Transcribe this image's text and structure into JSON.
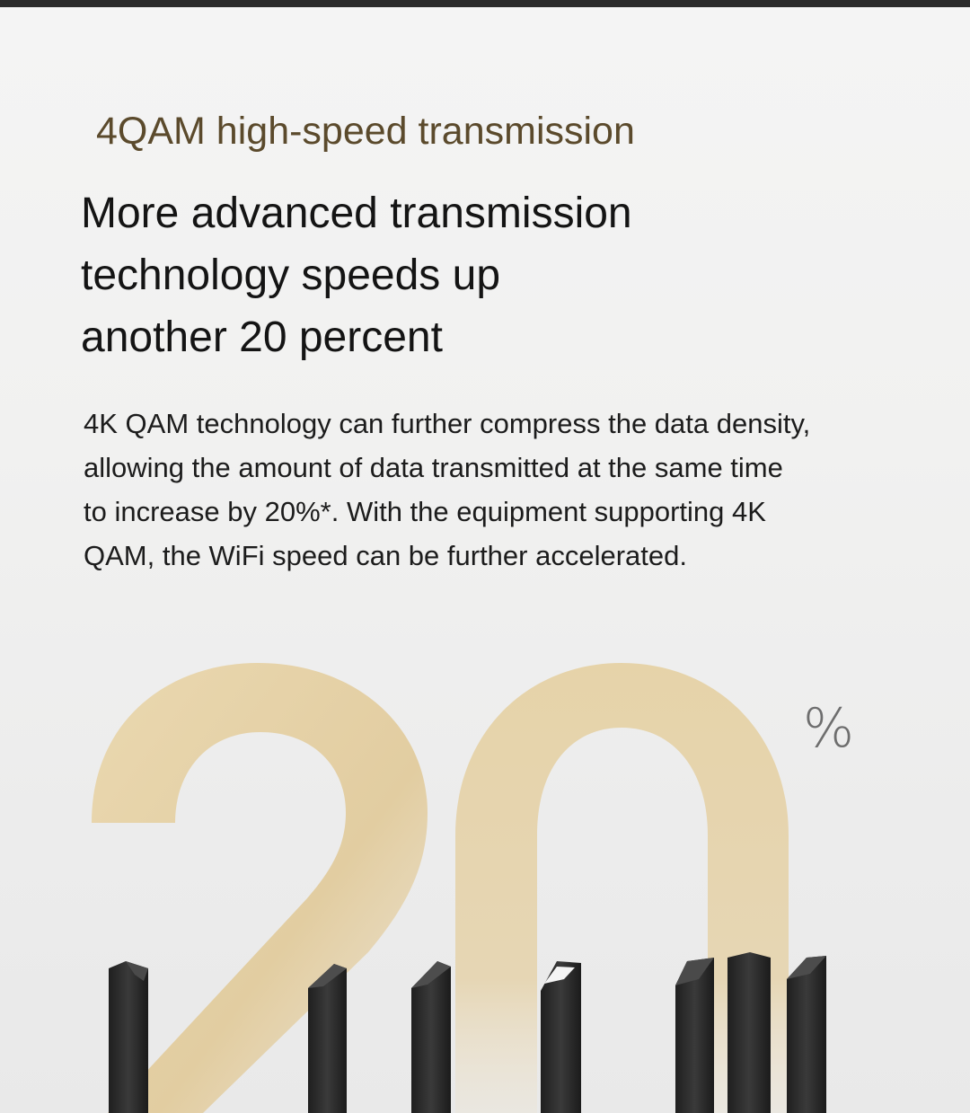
{
  "section": {
    "subtitle": "4QAM high-speed transmission",
    "headline_lines": [
      "More advanced transmission",
      "technology speeds up",
      "another 20 percent"
    ],
    "body_lines": [
      "4K QAM technology can further compress the data density,",
      "allowing the amount of data transmitted at the same time",
      "to increase by 20%*. With the equipment supporting 4K",
      "QAM, the WiFi speed can be further accelerated."
    ]
  },
  "visual": {
    "big_number": "20",
    "percent_sign": "%",
    "accent_color": "#e5d2a8",
    "antenna_color": "#2a2a2a",
    "antenna_icon": "router-antenna-icon"
  },
  "colors": {
    "subtitle": "#5b4a2c",
    "headline": "#141414",
    "body": "#1c1c1c"
  }
}
